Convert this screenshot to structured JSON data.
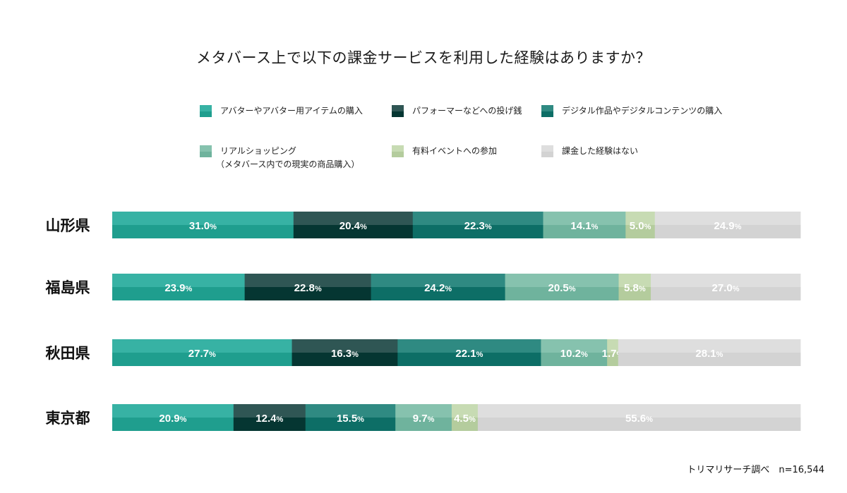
{
  "title": "メタバース上で以下の課金サービスを利用した経験はありますか？",
  "source": "トリマリサーチ調べ　n=16,544",
  "legend": [
    {
      "label": "アバターやアバター用アイテムの購入",
      "sub": "",
      "color": "#1f9e8e",
      "color_light": "#37b2a4"
    },
    {
      "label": "パフォーマーなどへの投げ銭",
      "sub": "",
      "color": "#053632",
      "color_light": "#2f5654"
    },
    {
      "label": "デジタル作品やデジタルコンテンツの購入",
      "sub": "",
      "color": "#0d6e66",
      "color_light": "#2f8a82"
    },
    {
      "label": "リアルショッピング",
      "sub": "（メタバース内での現実の商品購入）",
      "color": "#6fb39d",
      "color_light": "#86c2ae"
    },
    {
      "label": "有料イベントへの参加",
      "sub": "",
      "color": "#b4cc9d",
      "color_light": "#c7dbb3"
    },
    {
      "label": "課金した経験はない",
      "sub": "",
      "color": "#d3d3d3",
      "color_light": "#dedede"
    }
  ],
  "chart_data": {
    "type": "bar",
    "orientation": "horizontal",
    "stacked": true,
    "title": "メタバース上で以下の課金サービスを利用した経験はありますか？",
    "unit": "%",
    "categories": [
      "山形県",
      "福島県",
      "秋田県",
      "東京都"
    ],
    "series": [
      {
        "name": "アバターやアバター用アイテムの購入",
        "values": [
          31.0,
          23.9,
          27.7,
          20.9
        ],
        "labels": [
          "31.0",
          "23.9",
          "27.7",
          "20.9"
        ]
      },
      {
        "name": "パフォーマーなどへの投げ銭",
        "values": [
          20.4,
          22.8,
          16.3,
          12.4
        ],
        "labels": [
          "20.4",
          "22.8",
          "16.3",
          "12.4"
        ]
      },
      {
        "name": "デジタル作品やデジタルコンテンツの購入",
        "values": [
          22.3,
          24.2,
          22.1,
          15.5
        ],
        "labels": [
          "22.3",
          "24.2",
          "22.1",
          "15.5"
        ]
      },
      {
        "name": "リアルショッピング（メタバース内での現実の商品購入）",
        "values": [
          14.1,
          20.5,
          10.2,
          9.7
        ],
        "labels": [
          "14.1",
          "20.5",
          "10.2",
          "9.7"
        ]
      },
      {
        "name": "有料イベントへの参加",
        "values": [
          5.0,
          5.8,
          1.7,
          4.5
        ],
        "labels": [
          "5.0",
          "5.8",
          "1.7",
          "4.5"
        ]
      },
      {
        "name": "課金した経験はない",
        "values": [
          24.9,
          27.0,
          28.1,
          55.6
        ],
        "labels": [
          "24.9",
          "27.0",
          "28.1",
          "55.6"
        ]
      }
    ]
  }
}
